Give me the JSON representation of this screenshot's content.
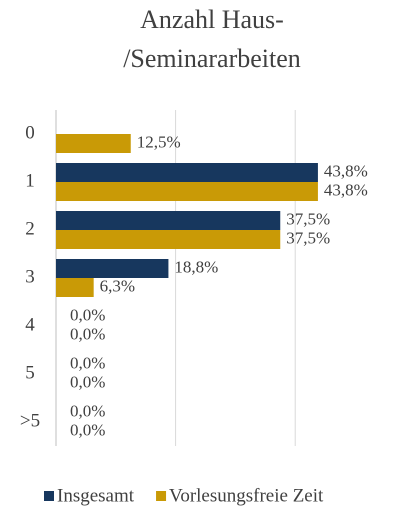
{
  "chart_data": {
    "type": "barh",
    "title": [
      "Anzahl Haus-",
      "/Seminararbeiten"
    ],
    "categories": [
      "0",
      "1",
      "2",
      "3",
      "4",
      "5",
      ">5"
    ],
    "series": [
      {
        "name": "Insgesamt",
        "color": "#17375e",
        "values": [
          null,
          43.8,
          37.5,
          18.8,
          0,
          0,
          0
        ],
        "value_labels": [
          null,
          "43,8%",
          "37,5%",
          "18,8%",
          "0,0%",
          "0,0%",
          "0,0%"
        ]
      },
      {
        "name": "Vorlesungsfreie Zeit",
        "color": "#c99a06",
        "values": [
          12.5,
          43.8,
          37.5,
          6.3,
          0,
          0,
          0
        ],
        "value_labels": [
          "12,5%",
          "43,8%",
          "37,5%",
          "6,3%",
          "0,0%",
          "0,0%",
          "0,0%"
        ]
      }
    ],
    "xlim": [
      0,
      50
    ],
    "xticks": [
      0,
      20,
      40
    ],
    "grid": true,
    "legend": "bottom"
  }
}
